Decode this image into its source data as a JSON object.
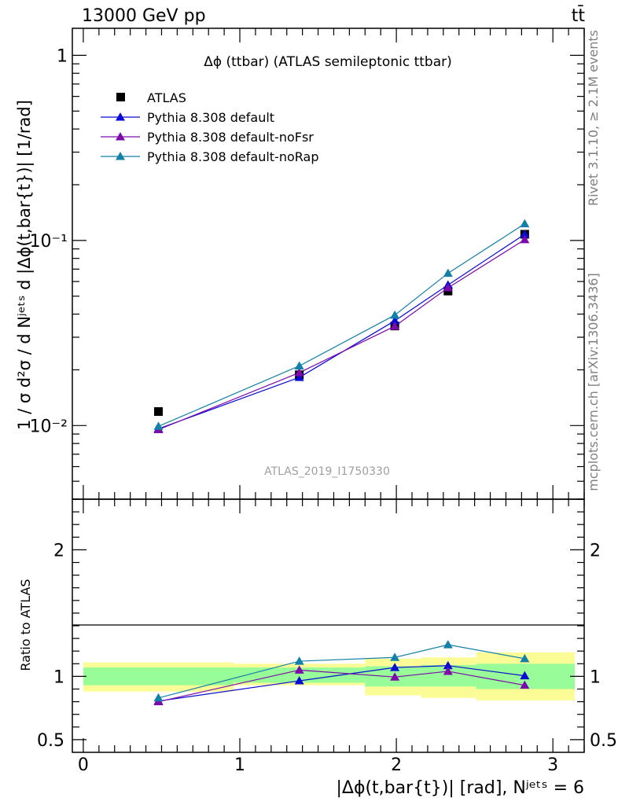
{
  "header": {
    "energy_label": "13000 GeV pp",
    "process_label": "tt̄"
  },
  "side_labels": {
    "rivet": "Rivet 3.1.10, ≥ 2.1M events",
    "source": "mcplots.cern.ch [arXiv:1306.3436]"
  },
  "main_plot": {
    "title": "Δϕ (ttbar) (ATLAS semileptonic ttbar)",
    "ylabel": "1 / σ d²σ / d Nʲᵉᵗˢ d |Δϕ(t,bar{t})| [1/rad]",
    "watermark": "ATLAS_2019_I1750330",
    "yscale": "log",
    "ylim": [
      0.004,
      1.4
    ],
    "ytick_labels": [
      "10⁻²",
      "10⁻¹",
      "1"
    ]
  },
  "ratio_plot": {
    "ylabel": "Ratio to ATLAS",
    "ylim": [
      0.4,
      2.4
    ],
    "ytick_labels": [
      "0.5",
      "1",
      "2"
    ]
  },
  "xaxis": {
    "label": "|Δϕ(t,bar{t})| [rad], Nʲᵉᵗˢ = 6",
    "xlim": [
      -0.07,
      3.2
    ],
    "tick_labels": [
      "0",
      "1",
      "2",
      "3"
    ]
  },
  "legend": {
    "placement": "top-left",
    "entries": [
      "ATLAS",
      "Pythia 8.308 default",
      "Pythia 8.308 default-noFsr",
      "Pythia 8.308 default-noRap"
    ]
  },
  "chart_data": {
    "type": "line",
    "x": [
      0.48,
      1.38,
      1.99,
      2.33,
      2.82
    ],
    "bin_edges": [
      0,
      0.96,
      1.8,
      2.16,
      2.51,
      3.14
    ],
    "colors": {
      "data": "#000000",
      "default": "#0a0ad2",
      "noFsr": "#7d0aab",
      "noRap": "#1380a8",
      "band_inner": "#98fc98",
      "band_outer": "#fcfc96"
    },
    "series": [
      {
        "name": "ATLAS",
        "values": [
          0.0119,
          0.0188,
          0.0345,
          0.0533,
          0.108
        ]
      },
      {
        "name": "Pythia 8.308 default",
        "values": [
          0.0096,
          0.0182,
          0.0368,
          0.0575,
          0.108
        ]
      },
      {
        "name": "Pythia 8.308 default-noFsr",
        "values": [
          0.0095,
          0.0193,
          0.0344,
          0.0555,
          0.101
        ]
      },
      {
        "name": "Pythia 8.308 default-noRap",
        "values": [
          0.0099,
          0.021,
          0.0395,
          0.0665,
          0.123
        ]
      }
    ],
    "ratio": {
      "band_inner": [
        [
          0.93,
          1.07
        ],
        [
          0.95,
          1.07
        ],
        [
          0.92,
          1.08
        ],
        [
          0.92,
          1.09
        ],
        [
          0.9,
          1.1
        ]
      ],
      "band_outer": [
        [
          0.88,
          1.11
        ],
        [
          0.93,
          1.1
        ],
        [
          0.85,
          1.14
        ],
        [
          0.83,
          1.15
        ],
        [
          0.81,
          1.19
        ]
      ],
      "series": [
        {
          "name": "Pythia 8.308 default",
          "values": [
            0.805,
            0.965,
            1.07,
            1.085,
            1.005
          ]
        },
        {
          "name": "Pythia 8.308 default-noFsr",
          "values": [
            0.8,
            1.05,
            0.995,
            1.04,
            0.93
          ]
        },
        {
          "name": "Pythia 8.308 default-noRap",
          "values": [
            0.83,
            1.12,
            1.15,
            1.25,
            1.14
          ]
        }
      ]
    }
  }
}
